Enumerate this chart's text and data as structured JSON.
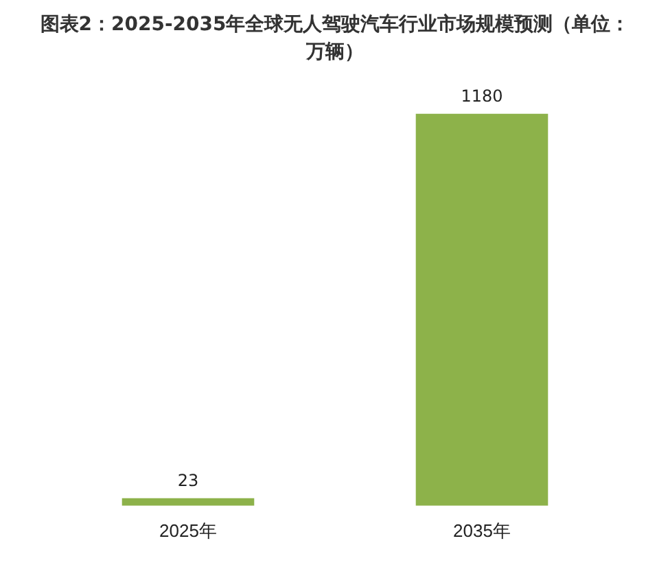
{
  "chart_data": {
    "type": "bar",
    "title": "图表2：2025-2035年全球无人驾驶汽车行业市场规模预测（单位：万辆）",
    "categories": [
      "2025年",
      "2035年"
    ],
    "values": [
      23,
      1180
    ],
    "color": "#8db24a",
    "data_labels": true
  }
}
